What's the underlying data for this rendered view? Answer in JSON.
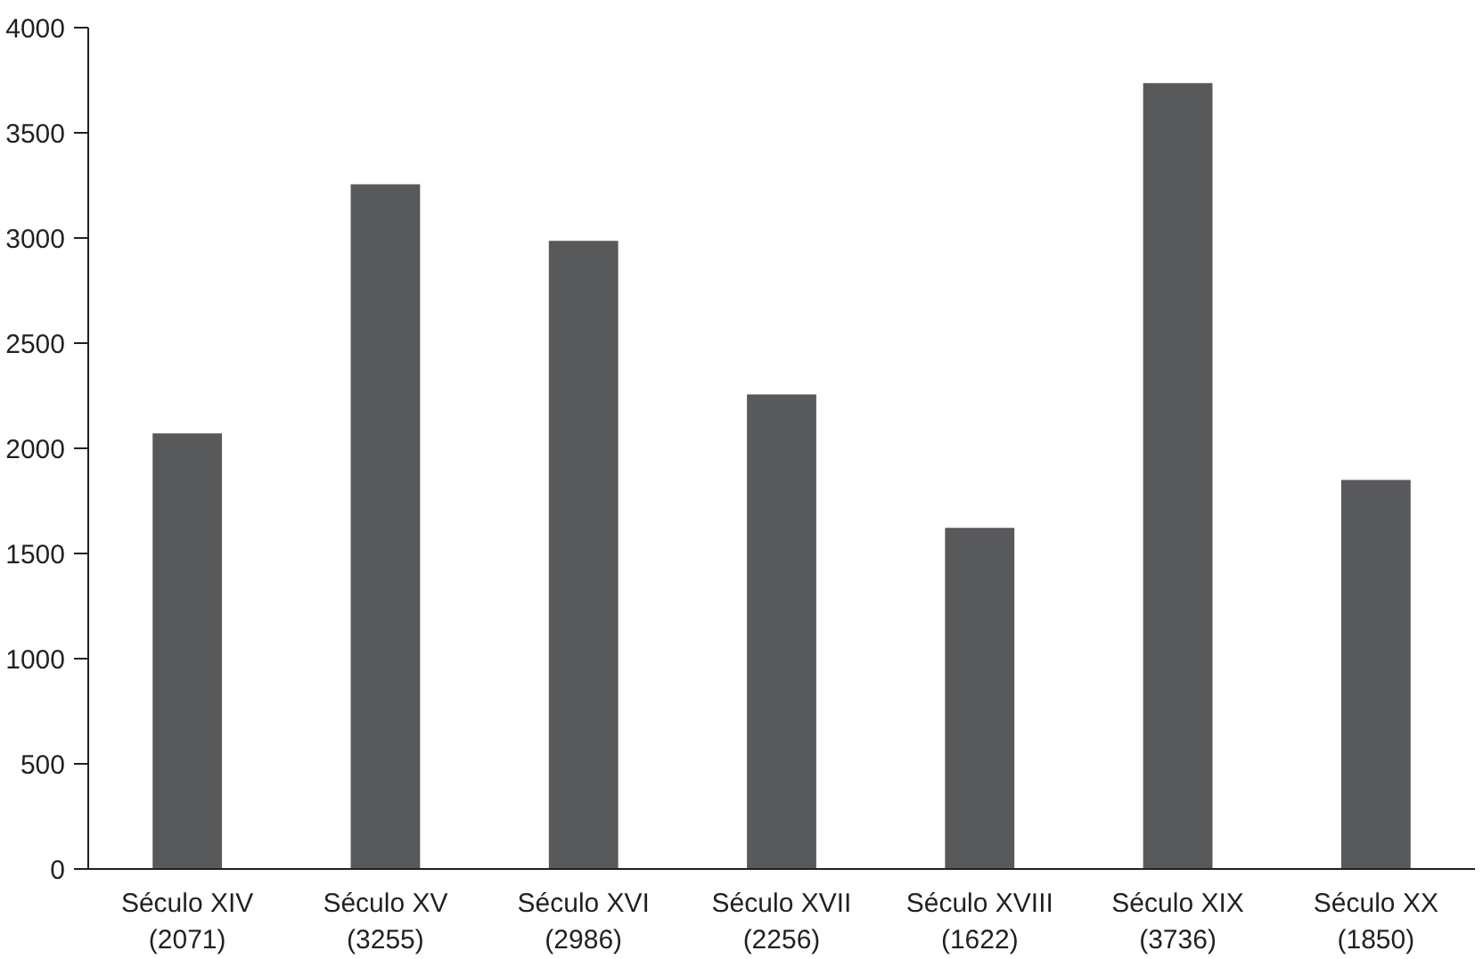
{
  "chart_data": {
    "type": "bar",
    "categories": [
      "Século XIV\n(2071)",
      "Século XV\n(3255)",
      "Século XVI\n(2986)",
      "Século XVII\n(2256)",
      "Século XVIII\n(1622)",
      "Século XIX\n(3736)",
      "Século XX\n(1850)"
    ],
    "values": [
      2071,
      3255,
      2986,
      2256,
      1622,
      3736,
      1850
    ],
    "color": "#58595b",
    "ylim": [
      0,
      4000
    ],
    "yticks": [
      0,
      500,
      1000,
      1500,
      2000,
      2500,
      3000,
      3500,
      4000
    ],
    "grid": false
  }
}
